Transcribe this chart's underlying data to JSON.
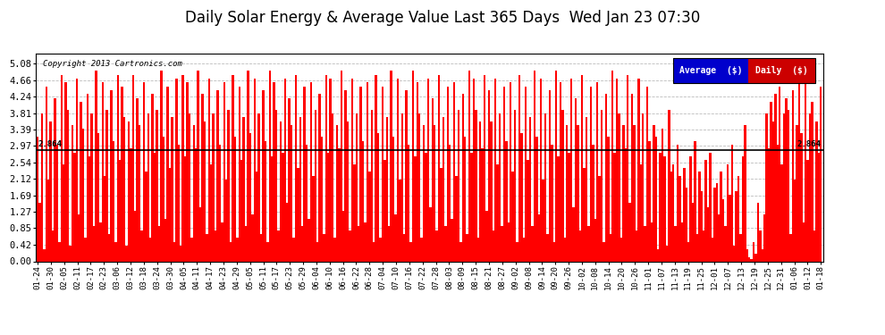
{
  "title": "Daily Solar Energy & Average Value Last 365 Days  Wed Jan 23 07:30",
  "copyright": "Copyright 2013 Cartronics.com",
  "average_value": 2.864,
  "average_label": "2.864",
  "yticks": [
    0.0,
    0.42,
    0.85,
    1.27,
    1.69,
    2.12,
    2.54,
    2.97,
    3.39,
    3.81,
    4.24,
    4.66,
    5.08
  ],
  "ylim": [
    0.0,
    5.34
  ],
  "bar_color": "#ff0000",
  "average_line_color": "#000000",
  "background_color": "#ffffff",
  "grid_color": "#aaaaaa",
  "title_fontsize": 12,
  "legend_labels": [
    "Average  ($)",
    "Daily  ($)"
  ],
  "legend_colors": [
    "#0000cc",
    "#cc0000"
  ],
  "xtick_labels": [
    "01-24",
    "01-30",
    "02-05",
    "02-11",
    "02-17",
    "02-23",
    "03-06",
    "03-12",
    "03-18",
    "03-24",
    "03-30",
    "04-05",
    "04-11",
    "04-17",
    "04-23",
    "04-29",
    "05-05",
    "05-11",
    "05-17",
    "05-23",
    "05-29",
    "06-04",
    "06-10",
    "06-16",
    "06-22",
    "06-28",
    "07-04",
    "07-10",
    "07-16",
    "07-22",
    "07-28",
    "08-03",
    "08-09",
    "08-15",
    "08-21",
    "08-27",
    "09-02",
    "09-08",
    "09-14",
    "09-20",
    "09-26",
    "10-02",
    "10-08",
    "10-14",
    "10-20",
    "10-26",
    "11-01",
    "11-07",
    "11-13",
    "11-19",
    "11-25",
    "12-01",
    "12-07",
    "12-13",
    "12-19",
    "12-25",
    "12-31",
    "01-06",
    "01-12",
    "01-18"
  ],
  "bar_values": [
    3.2,
    1.5,
    3.8,
    0.3,
    4.5,
    2.1,
    3.6,
    0.8,
    4.2,
    3.0,
    0.5,
    4.8,
    2.5,
    4.6,
    3.9,
    0.4,
    3.5,
    2.8,
    4.7,
    1.2,
    4.1,
    3.4,
    0.6,
    4.3,
    2.7,
    3.8,
    0.9,
    4.9,
    3.3,
    1.0,
    4.6,
    2.2,
    3.9,
    0.7,
    4.4,
    3.1,
    0.5,
    4.8,
    2.6,
    4.5,
    3.7,
    0.4,
    3.6,
    2.9,
    4.8,
    1.3,
    4.2,
    3.5,
    0.8,
    4.6,
    2.3,
    3.8,
    0.6,
    4.3,
    2.8,
    3.9,
    0.9,
    4.9,
    3.2,
    1.1,
    4.5,
    2.4,
    3.7,
    0.5,
    4.7,
    3.0,
    0.4,
    4.8,
    2.7,
    4.6,
    3.8,
    0.6,
    3.5,
    2.9,
    4.9,
    1.4,
    4.3,
    3.6,
    0.7,
    4.7,
    2.5,
    3.8,
    0.8,
    4.4,
    3.0,
    1.0,
    4.6,
    2.1,
    3.9,
    0.5,
    4.8,
    3.2,
    0.6,
    4.5,
    2.6,
    3.7,
    0.9,
    4.9,
    3.3,
    1.2,
    4.7,
    2.3,
    3.8,
    0.7,
    4.4,
    3.1,
    0.5,
    4.9,
    2.7,
    4.6,
    3.9,
    0.8,
    3.6,
    2.8,
    4.7,
    1.5,
    4.2,
    3.5,
    0.6,
    4.8,
    2.4,
    3.7,
    0.9,
    4.5,
    3.0,
    1.1,
    4.6,
    2.2,
    3.9,
    0.5,
    4.3,
    3.2,
    0.7,
    4.8,
    2.8,
    4.7,
    3.8,
    0.6,
    3.5,
    2.9,
    4.9,
    1.3,
    4.4,
    3.6,
    0.8,
    4.7,
    2.5,
    3.8,
    0.9,
    4.5,
    3.1,
    1.0,
    4.6,
    2.3,
    3.9,
    0.5,
    4.8,
    3.3,
    0.6,
    4.5,
    2.6,
    3.7,
    0.9,
    4.9,
    3.2,
    1.2,
    4.7,
    2.1,
    3.8,
    0.7,
    4.4,
    3.0,
    0.5,
    4.9,
    2.7,
    4.6,
    3.8,
    0.6,
    3.5,
    2.8,
    4.7,
    1.4,
    4.2,
    3.5,
    0.8,
    4.8,
    2.4,
    3.7,
    0.9,
    4.5,
    3.0,
    1.1,
    4.6,
    2.2,
    3.9,
    0.5,
    4.3,
    3.2,
    0.7,
    4.9,
    2.8,
    4.7,
    3.9,
    0.6,
    3.6,
    2.9,
    4.8,
    1.3,
    4.4,
    3.6,
    0.8,
    4.7,
    2.5,
    3.8,
    0.9,
    4.5,
    3.1,
    1.0,
    4.6,
    2.3,
    3.9,
    0.5,
    4.8,
    3.3,
    0.6,
    4.5,
    2.6,
    3.7,
    0.9,
    4.9,
    3.2,
    1.2,
    4.7,
    2.1,
    3.8,
    0.7,
    4.4,
    3.0,
    0.5,
    4.9,
    2.7,
    4.6,
    3.9,
    0.6,
    3.5,
    2.8,
    4.7,
    1.4,
    4.2,
    3.5,
    0.8,
    4.8,
    2.4,
    3.7,
    0.9,
    4.5,
    3.0,
    1.1,
    4.6,
    2.2,
    3.9,
    0.5,
    4.3,
    3.2,
    0.7,
    4.9,
    2.8,
    4.7,
    3.8,
    0.6,
    3.5,
    2.9,
    4.8,
    1.5,
    4.3,
    3.5,
    0.8,
    4.7,
    2.5,
    3.8,
    0.9,
    4.5,
    3.1,
    1.0,
    3.5,
    3.2,
    0.3,
    2.8,
    3.4,
    2.7,
    0.4,
    3.9,
    2.3,
    2.5,
    0.9,
    3.0,
    2.2,
    1.0,
    2.4,
    1.9,
    0.5,
    2.7,
    1.5,
    3.1,
    0.7,
    2.3,
    1.8,
    0.8,
    2.6,
    1.4,
    2.8,
    0.6,
    1.9,
    2.0,
    1.2,
    2.3,
    1.6,
    0.9,
    2.5,
    1.7,
    3.0,
    0.4,
    1.8,
    2.2,
    0.7,
    2.7,
    3.5,
    0.3,
    0.1,
    0.05,
    0.5,
    0.2,
    1.5,
    0.8,
    0.3,
    1.2,
    3.8,
    2.9,
    4.1,
    3.6,
    4.3,
    3.0,
    4.5,
    2.5,
    3.8,
    4.2,
    3.9,
    0.7,
    4.4,
    2.1,
    3.5,
    4.6,
    3.3,
    1.0,
    4.7,
    2.6,
    3.8,
    4.1,
    0.8,
    3.6,
    2.8,
    4.5
  ]
}
